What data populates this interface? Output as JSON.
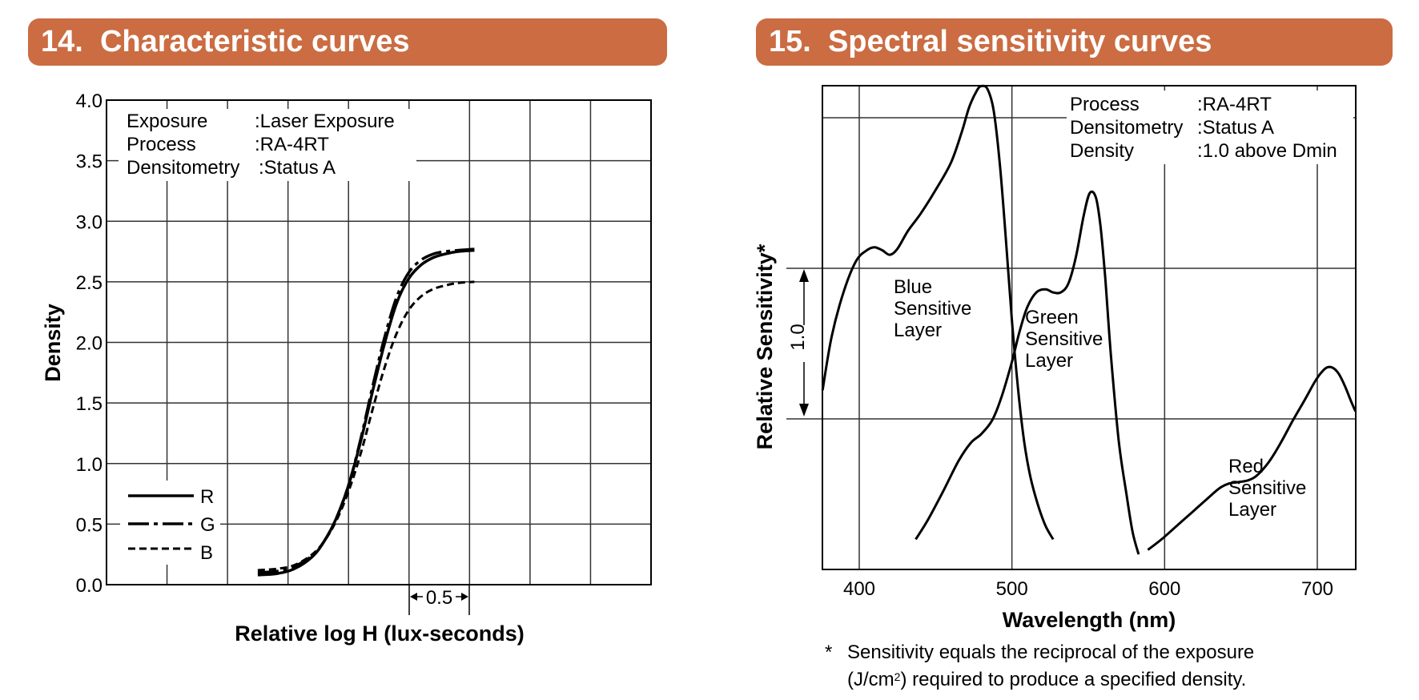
{
  "sections": [
    {
      "number": "14.",
      "title": "Characteristic curves"
    },
    {
      "number": "15.",
      "title": "Spectral sensitivity curves"
    }
  ],
  "colors": {
    "banner": "#cb6c42",
    "banner_text": "#ffffff",
    "ink": "#000000",
    "grid": "#333333"
  },
  "chart_data": [
    {
      "type": "line",
      "title": "Characteristic curves",
      "xlabel": "Relative log H (lux-seconds)",
      "ylabel": "Density",
      "ylim": [
        0.0,
        4.0
      ],
      "xlim": [
        0.0,
        4.5
      ],
      "grid": true,
      "yticks": [
        "0.0",
        "0.5",
        "1.0",
        "1.5",
        "2.0",
        "2.5",
        "3.0",
        "3.5",
        "4.0"
      ],
      "ytick_values": [
        0.0,
        0.5,
        1.0,
        1.5,
        2.0,
        2.5,
        3.0,
        3.5,
        4.0
      ],
      "xgrid_step": 0.5,
      "scale_marker": "0.5",
      "info": [
        {
          "key": "Exposure",
          "value": ":Laser Exposure"
        },
        {
          "key": "Process",
          "value": ":RA-4RT"
        },
        {
          "key": "Densitometry",
          "value": ":Status A"
        }
      ],
      "legend_position": "bottom-left",
      "series": [
        {
          "name": "R",
          "style": "solid",
          "x": [
            1.25,
            1.4,
            1.55,
            1.7,
            1.8,
            1.9,
            2.0,
            2.1,
            2.2,
            2.3,
            2.4,
            2.5,
            2.6,
            2.7,
            2.8,
            2.9,
            3.04
          ],
          "y": [
            0.08,
            0.09,
            0.13,
            0.23,
            0.36,
            0.55,
            0.82,
            1.18,
            1.6,
            2.0,
            2.33,
            2.53,
            2.64,
            2.7,
            2.73,
            2.75,
            2.76
          ]
        },
        {
          "name": "G",
          "style": "dash-dot",
          "x": [
            1.25,
            1.4,
            1.55,
            1.7,
            1.8,
            1.9,
            2.0,
            2.1,
            2.2,
            2.3,
            2.4,
            2.5,
            2.6,
            2.7,
            2.8,
            2.9,
            3.04
          ],
          "y": [
            0.1,
            0.11,
            0.15,
            0.24,
            0.36,
            0.55,
            0.82,
            1.2,
            1.64,
            2.05,
            2.38,
            2.58,
            2.68,
            2.73,
            2.75,
            2.76,
            2.77
          ]
        },
        {
          "name": "B",
          "style": "dashed",
          "x": [
            1.25,
            1.4,
            1.55,
            1.7,
            1.8,
            1.9,
            2.0,
            2.1,
            2.2,
            2.3,
            2.4,
            2.5,
            2.6,
            2.7,
            2.8,
            2.9,
            3.04
          ],
          "y": [
            0.12,
            0.13,
            0.16,
            0.25,
            0.36,
            0.53,
            0.77,
            1.08,
            1.45,
            1.8,
            2.08,
            2.27,
            2.38,
            2.44,
            2.47,
            2.49,
            2.5
          ]
        }
      ]
    },
    {
      "type": "line",
      "title": "Spectral sensitivity curves",
      "xlabel": "Wavelength (nm)",
      "ylabel": "Relative Sensitivity*",
      "xlim": [
        376,
        725
      ],
      "ylim": [
        0.0,
        3.2
      ],
      "grid": true,
      "xticks": [
        "400",
        "500",
        "600",
        "700"
      ],
      "xtick_values": [
        400,
        500,
        600,
        700
      ],
      "ygrid_values": [
        1.0,
        2.0,
        3.0
      ],
      "scale_marker": "1.0",
      "info": [
        {
          "key": "Process",
          "value": ":RA-4RT"
        },
        {
          "key": "Densitometry",
          "value": ":Status A"
        },
        {
          "key": "Density",
          "value": ":1.0 above Dmin"
        }
      ],
      "footnote": {
        "star": "*",
        "line1": "Sensitivity equals the reciprocal of the exposure",
        "line2_pre": "(J/cm",
        "line2_sup": "2",
        "line2_post": ") required to produce a specified density."
      },
      "series": [
        {
          "name": "Blue Sensitive Layer",
          "label_lines": [
            "Blue",
            "Sensitive",
            "Layer"
          ],
          "x": [
            376,
            382,
            390,
            398,
            405,
            410,
            415,
            420,
            425,
            432,
            440,
            450,
            460,
            467,
            472,
            477,
            480,
            484,
            488,
            492,
            496,
            500,
            504,
            508,
            512,
            517,
            522,
            527
          ],
          "y": [
            1.19,
            1.55,
            1.85,
            2.05,
            2.12,
            2.14,
            2.12,
            2.09,
            2.13,
            2.25,
            2.36,
            2.52,
            2.7,
            2.9,
            3.07,
            3.18,
            3.21,
            3.19,
            3.05,
            2.7,
            2.2,
            1.65,
            1.2,
            0.85,
            0.62,
            0.43,
            0.29,
            0.2
          ]
        },
        {
          "name": "Green Sensitive Layer",
          "label_lines": [
            "Green",
            "Sensitive",
            "Layer"
          ],
          "x": [
            437,
            445,
            455,
            465,
            473,
            480,
            487,
            493,
            500,
            505,
            510,
            516,
            522,
            527,
            532,
            537,
            542,
            547,
            551,
            555,
            558,
            561,
            565,
            570,
            575,
            579,
            583
          ],
          "y": [
            0.2,
            0.33,
            0.52,
            0.72,
            0.84,
            0.9,
            0.99,
            1.14,
            1.38,
            1.58,
            1.74,
            1.84,
            1.86,
            1.84,
            1.84,
            1.9,
            2.08,
            2.35,
            2.5,
            2.47,
            2.28,
            1.95,
            1.4,
            0.85,
            0.5,
            0.25,
            0.1
          ]
        },
        {
          "name": "Red Sensitive Layer",
          "label_lines": [
            "Red",
            "Sensitive",
            "Layer"
          ],
          "x": [
            589,
            598,
            608,
            618,
            628,
            636,
            642,
            648,
            654,
            660,
            668,
            676,
            684,
            692,
            698,
            702,
            706,
            710,
            714,
            718,
            722,
            725
          ],
          "y": [
            0.13,
            0.2,
            0.29,
            0.38,
            0.47,
            0.54,
            0.57,
            0.58,
            0.59,
            0.62,
            0.71,
            0.84,
            0.99,
            1.13,
            1.24,
            1.3,
            1.34,
            1.34,
            1.3,
            1.22,
            1.12,
            1.05
          ]
        }
      ]
    }
  ]
}
